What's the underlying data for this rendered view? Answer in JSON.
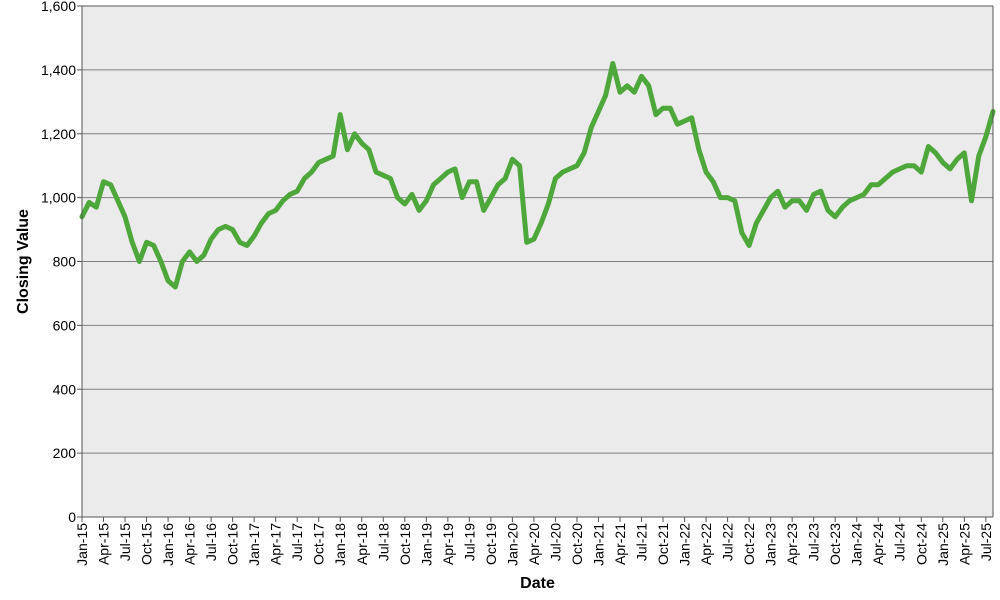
{
  "chart_data": {
    "type": "line",
    "title": "",
    "xlabel": "Date",
    "ylabel": "Closing Value",
    "ylim": [
      0,
      1600
    ],
    "xlim": [
      "2015-01",
      "2025-08"
    ],
    "yticks": [
      "0",
      "200",
      "400",
      "600",
      "800",
      "1,000",
      "1,200",
      "1,400",
      "1,600"
    ],
    "xticks": [
      "Jan-15",
      "Apr-15",
      "Jul-15",
      "Oct-15",
      "Jan-16",
      "Apr-16",
      "Jul-16",
      "Oct-16",
      "Jan-17",
      "Apr-17",
      "Jul-17",
      "Oct-17",
      "Jan-18",
      "Apr-18",
      "Jul-18",
      "Oct-18",
      "Jan-19",
      "Apr-19",
      "Jul-19",
      "Oct-19",
      "Jan-20",
      "Apr-20",
      "Jul-20",
      "Oct-20",
      "Jan-21",
      "Apr-21",
      "Jul-21",
      "Oct-21",
      "Jan-22",
      "Apr-22",
      "Jul-22",
      "Oct-22",
      "Jan-23",
      "Apr-23",
      "Jul-23",
      "Oct-23",
      "Jan-24",
      "Apr-24",
      "Jul-24",
      "Oct-24",
      "Jan-25",
      "Apr-25",
      "Jul-25"
    ],
    "grid": true,
    "legend": "none",
    "colors": {
      "line": "#4ea73a",
      "plot_bg": "#ebebeb",
      "grid": "#808080",
      "axis": "#555555"
    },
    "series": [
      {
        "x": [
          "2015-01",
          "2015-02",
          "2015-03",
          "2015-04",
          "2015-05",
          "2015-06",
          "2015-07",
          "2015-08",
          "2015-09",
          "2015-10",
          "2015-11",
          "2015-12",
          "2016-01",
          "2016-02",
          "2016-03",
          "2016-04",
          "2016-05",
          "2016-06",
          "2016-07",
          "2016-08",
          "2016-09",
          "2016-10",
          "2016-11",
          "2016-12",
          "2017-01",
          "2017-02",
          "2017-03",
          "2017-04",
          "2017-05",
          "2017-06",
          "2017-07",
          "2017-08",
          "2017-09",
          "2017-10",
          "2017-11",
          "2017-12",
          "2018-01",
          "2018-02",
          "2018-03",
          "2018-04",
          "2018-05",
          "2018-06",
          "2018-07",
          "2018-08",
          "2018-09",
          "2018-10",
          "2018-11",
          "2018-12",
          "2019-01",
          "2019-02",
          "2019-03",
          "2019-04",
          "2019-05",
          "2019-06",
          "2019-07",
          "2019-08",
          "2019-09",
          "2019-10",
          "2019-11",
          "2019-12",
          "2020-01",
          "2020-02",
          "2020-03",
          "2020-04",
          "2020-05",
          "2020-06",
          "2020-07",
          "2020-08",
          "2020-09",
          "2020-10",
          "2020-11",
          "2020-12",
          "2021-01",
          "2021-02",
          "2021-03",
          "2021-04",
          "2021-05",
          "2021-06",
          "2021-07",
          "2021-08",
          "2021-09",
          "2021-10",
          "2021-11",
          "2021-12",
          "2022-01",
          "2022-02",
          "2022-03",
          "2022-04",
          "2022-05",
          "2022-06",
          "2022-07",
          "2022-08",
          "2022-09",
          "2022-10",
          "2022-11",
          "2022-12",
          "2023-01",
          "2023-02",
          "2023-03",
          "2023-04",
          "2023-05",
          "2023-06",
          "2023-07",
          "2023-08",
          "2023-09",
          "2023-10",
          "2023-11",
          "2023-12",
          "2024-01",
          "2024-02",
          "2024-03",
          "2024-04",
          "2024-05",
          "2024-06",
          "2024-07",
          "2024-08",
          "2024-09",
          "2024-10",
          "2024-11",
          "2024-12",
          "2025-01",
          "2025-02",
          "2025-03",
          "2025-04",
          "2025-05",
          "2025-06",
          "2025-07",
          "2025-08"
        ],
        "values": [
          940,
          985,
          970,
          1050,
          1040,
          990,
          940,
          860,
          800,
          860,
          850,
          800,
          740,
          720,
          800,
          830,
          800,
          820,
          870,
          900,
          910,
          900,
          860,
          850,
          880,
          920,
          950,
          960,
          990,
          1010,
          1020,
          1060,
          1080,
          1110,
          1120,
          1130,
          1260,
          1150,
          1200,
          1170,
          1150,
          1080,
          1070,
          1060,
          1000,
          980,
          1010,
          960,
          990,
          1040,
          1060,
          1080,
          1090,
          1000,
          1050,
          1050,
          960,
          1000,
          1040,
          1060,
          1120,
          1100,
          860,
          870,
          920,
          980,
          1060,
          1080,
          1090,
          1100,
          1140,
          1220,
          1270,
          1320,
          1420,
          1330,
          1350,
          1330,
          1380,
          1350,
          1260,
          1280,
          1280,
          1230,
          1240,
          1250,
          1150,
          1080,
          1050,
          1000,
          1000,
          990,
          890,
          850,
          920,
          960,
          1000,
          1020,
          970,
          990,
          990,
          960,
          1010,
          1020,
          960,
          940,
          970,
          990,
          1000,
          1010,
          1040,
          1040,
          1060,
          1080,
          1090,
          1100,
          1100,
          1080,
          1160,
          1140,
          1110,
          1090,
          1120,
          1140,
          990,
          1130,
          1190,
          1270
        ]
      }
    ]
  }
}
